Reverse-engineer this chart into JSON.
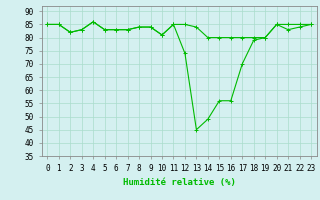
{
  "x": [
    0,
    1,
    2,
    3,
    4,
    5,
    6,
    7,
    8,
    9,
    10,
    11,
    12,
    13,
    14,
    15,
    16,
    17,
    18,
    19,
    20,
    21,
    22,
    23
  ],
  "y_line1": [
    85,
    85,
    82,
    83,
    86,
    83,
    83,
    83,
    84,
    84,
    81,
    85,
    85,
    84,
    80,
    80,
    80,
    80,
    80,
    80,
    85,
    85,
    85,
    85
  ],
  "y_line2": [
    85,
    85,
    82,
    83,
    86,
    83,
    83,
    83,
    84,
    84,
    81,
    85,
    74,
    45,
    49,
    56,
    56,
    70,
    79,
    80,
    85,
    83,
    84,
    85
  ],
  "xlabel": "Humidité relative (%)",
  "line_color": "#00bb00",
  "bg_color": "#d4f0f0",
  "grid_color": "#aaddcc",
  "ylim": [
    35,
    92
  ],
  "xlim": [
    -0.5,
    23.5
  ],
  "yticks": [
    35,
    40,
    45,
    50,
    55,
    60,
    65,
    70,
    75,
    80,
    85,
    90
  ],
  "xticks": [
    0,
    1,
    2,
    3,
    4,
    5,
    6,
    7,
    8,
    9,
    10,
    11,
    12,
    13,
    14,
    15,
    16,
    17,
    18,
    19,
    20,
    21,
    22,
    23
  ],
  "xlabel_fontsize": 6.5,
  "tick_fontsize": 5.5
}
